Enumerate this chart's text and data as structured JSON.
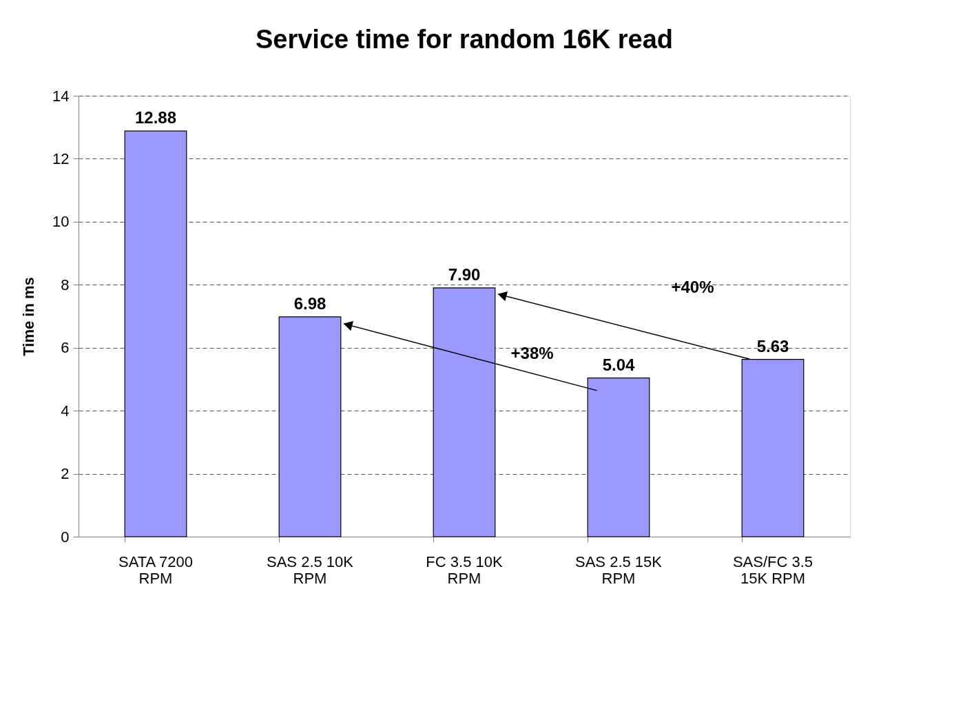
{
  "chart_data": {
    "type": "bar",
    "title": "Service time for random 16K read",
    "ylabel": "Time in ms",
    "categories": [
      "SATA 7200\nRPM",
      "SAS 2.5 10K\nRPM",
      "FC 3.5 10K\nRPM",
      "SAS 2.5 15K\nRPM",
      "SAS/FC 3.5\n15K RPM"
    ],
    "values": [
      12.88,
      6.98,
      7.9,
      5.04,
      5.63
    ],
    "value_labels": [
      "12.88",
      "6.98",
      "7.90",
      "5.04",
      "5.63"
    ],
    "color": "#9999ff",
    "ylim": [
      0,
      14
    ],
    "yticks": [
      0,
      2,
      4,
      6,
      8,
      10,
      12,
      14
    ],
    "grid": "y",
    "annotations": [
      "+38%",
      "+40%"
    ]
  }
}
